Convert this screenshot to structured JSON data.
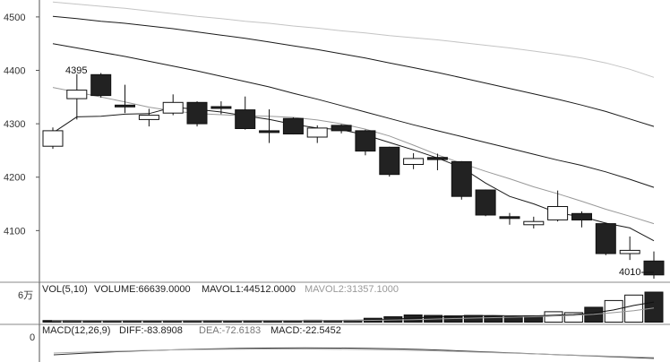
{
  "chart_data": [
    {
      "type": "candlestick",
      "title": "",
      "y_ticks": [
        4100,
        4200,
        4300,
        4400,
        4500
      ],
      "ylim": [
        4010,
        4530
      ],
      "annotations": {
        "high": "4395",
        "low": "4010"
      },
      "candles": [
        {
          "o": 4258,
          "c": 4287,
          "h": 4293,
          "l": 4253
        },
        {
          "o": 4347,
          "c": 4363,
          "h": 4393,
          "l": 4308
        },
        {
          "o": 4392,
          "c": 4353,
          "h": 4395,
          "l": 4349
        },
        {
          "o": 4335,
          "c": 4333,
          "h": 4373,
          "l": 4320
        },
        {
          "o": 4308,
          "c": 4316,
          "h": 4328,
          "l": 4295
        },
        {
          "o": 4320,
          "c": 4340,
          "h": 4355,
          "l": 4316
        },
        {
          "o": 4340,
          "c": 4300,
          "h": 4342,
          "l": 4295
        },
        {
          "o": 4332,
          "c": 4330,
          "h": 4342,
          "l": 4318
        },
        {
          "o": 4326,
          "c": 4291,
          "h": 4351,
          "l": 4289
        },
        {
          "o": 4287,
          "c": 4284,
          "h": 4327,
          "l": 4264
        },
        {
          "o": 4310,
          "c": 4281,
          "h": 4312,
          "l": 4280
        },
        {
          "o": 4275,
          "c": 4292,
          "h": 4297,
          "l": 4264
        },
        {
          "o": 4297,
          "c": 4287,
          "h": 4299,
          "l": 4282
        },
        {
          "o": 4287,
          "c": 4249,
          "h": 4289,
          "l": 4241
        },
        {
          "o": 4256,
          "c": 4205,
          "h": 4257,
          "l": 4201
        },
        {
          "o": 4224,
          "c": 4235,
          "h": 4245,
          "l": 4215
        },
        {
          "o": 4237,
          "c": 4233,
          "h": 4244,
          "l": 4213
        },
        {
          "o": 4229,
          "c": 4164,
          "h": 4230,
          "l": 4158
        },
        {
          "o": 4176,
          "c": 4129,
          "h": 4177,
          "l": 4127
        },
        {
          "o": 4126,
          "c": 4124,
          "h": 4133,
          "l": 4111
        },
        {
          "o": 4111,
          "c": 4117,
          "h": 4126,
          "l": 4104
        },
        {
          "o": 4120,
          "c": 4145,
          "h": 4175,
          "l": 4117
        },
        {
          "o": 4132,
          "c": 4120,
          "h": 4136,
          "l": 4106
        },
        {
          "o": 4113,
          "c": 4057,
          "h": 4115,
          "l": 4054
        },
        {
          "o": 4057,
          "c": 4063,
          "h": 4089,
          "l": 4045
        },
        {
          "o": 4043,
          "c": 4017,
          "h": 4061,
          "l": 4010
        }
      ],
      "moving_averages": [
        {
          "color": "#c4c4c4",
          "values": [
            4528,
            4524,
            4520,
            4516,
            4511,
            4506,
            4501,
            4497,
            4492,
            4488,
            4483,
            4479,
            4474,
            4470,
            4465,
            4461,
            4457,
            4452,
            4447,
            4442,
            4436,
            4430,
            4423,
            4414,
            4402,
            4387
          ]
        },
        {
          "color": "#1a1a1a",
          "values": [
            4501,
            4497,
            4492,
            4488,
            4483,
            4478,
            4472,
            4466,
            4460,
            4453,
            4446,
            4439,
            4431,
            4423,
            4414,
            4405,
            4396,
            4386,
            4376,
            4366,
            4356,
            4346,
            4335,
            4323,
            4309,
            4295
          ]
        },
        {
          "color": "#1a1a1a",
          "values": [
            4450,
            4442,
            4434,
            4426,
            4417,
            4408,
            4399,
            4389,
            4379,
            4369,
            4357,
            4346,
            4334,
            4322,
            4310,
            4298,
            4287,
            4276,
            4265,
            4254,
            4243,
            4232,
            4222,
            4210,
            4196,
            4181
          ]
        },
        {
          "color": "#999999",
          "values": [
            4368,
            4359,
            4350,
            4341,
            4331,
            4324,
            4319,
            4317,
            4315,
            4314,
            4312,
            4307,
            4300,
            4290,
            4277,
            4260,
            4242,
            4226,
            4211,
            4197,
            4182,
            4169,
            4155,
            4140,
            4127,
            4113
          ]
        },
        {
          "color": "#1a1a1a",
          "values": [
            4283,
            4313,
            4314,
            4318,
            4319,
            4331,
            4327,
            4322,
            4315,
            4308,
            4299,
            4292,
            4289,
            4279,
            4265,
            4251,
            4236,
            4218,
            4189,
            4164,
            4150,
            4133,
            4126,
            4114,
            4105,
            4081
          ]
        }
      ]
    },
    {
      "type": "bar",
      "label": "VOL(5,10)",
      "volume_label": "VOLUME:66639.0000",
      "mavol1_label": "MAVOL1:44512.0000",
      "mavol2_label": "MAVOL2:31357.1000",
      "y_tick": "6万",
      "ylim": [
        0,
        66639
      ],
      "values": [
        3500,
        3800,
        3400,
        3100,
        3300,
        2900,
        3200,
        3400,
        3600,
        3000,
        3300,
        3200,
        3000,
        4200,
        4000,
        4200,
        8500,
        12000,
        16000,
        15000,
        14000,
        15000,
        14000,
        12000,
        14000,
        23000,
        21000,
        33000,
        48000,
        60000,
        66639
      ],
      "ma1": [
        3400,
        3500,
        3500,
        3400,
        3400,
        3300,
        3300,
        3300,
        3350,
        3400,
        3350,
        3300,
        3300,
        3500,
        3650,
        3900,
        4700,
        6500,
        9000,
        11500,
        13300,
        14400,
        14800,
        14000,
        13800,
        15500,
        17000,
        20000,
        27000,
        37000,
        44512
      ],
      "ma2": [
        3200,
        3250,
        3300,
        3300,
        3350,
        3350,
        3350,
        3350,
        3380,
        3400,
        3400,
        3420,
        3430,
        3480,
        3550,
        3650,
        4000,
        4700,
        5600,
        6700,
        7900,
        9000,
        10000,
        11000,
        12000,
        13500,
        15000,
        17500,
        21000,
        25500,
        31357
      ]
    },
    {
      "type": "line",
      "label": "MACD(12,26,9)",
      "diff_label": "DIFF:-83.8908",
      "dea_label": "DEA:-72.6183",
      "macd_label": "MACD:-22.5452",
      "y_tick": "0"
    }
  ]
}
